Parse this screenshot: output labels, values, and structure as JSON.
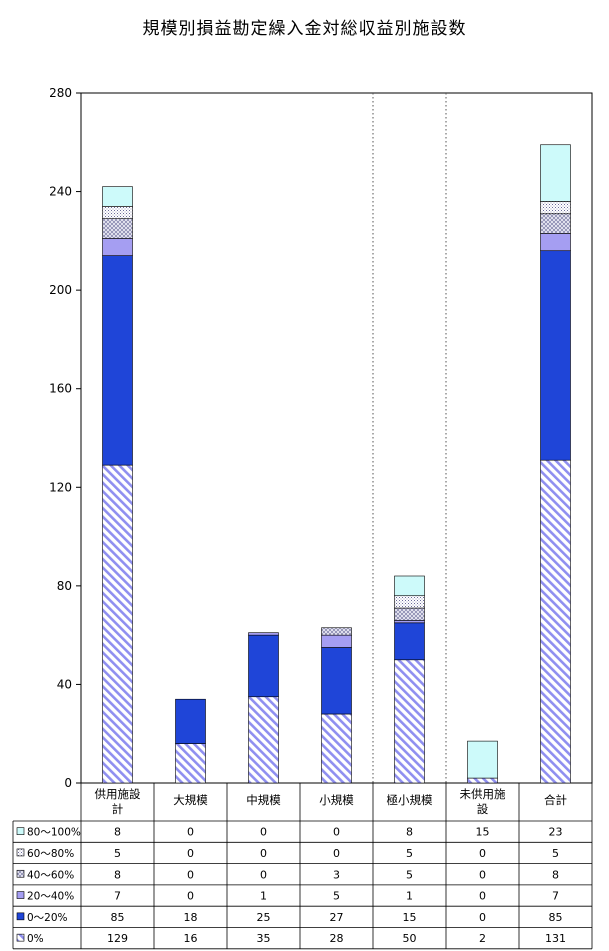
{
  "chart_data": {
    "type": "bar",
    "stacked": true,
    "title": "規模別損益勘定繰入金対総収益別施設数",
    "categories": [
      "供用施設計",
      "大規模",
      "中規模",
      "小規模",
      "極小規模",
      "未供用施設",
      "合計"
    ],
    "category_lines": [
      [
        "供用施設",
        "計"
      ],
      [
        "大規模"
      ],
      [
        "中規模"
      ],
      [
        "小規模"
      ],
      [
        "極小規模"
      ],
      [
        "未供用施",
        "設"
      ],
      [
        "合計"
      ]
    ],
    "series": [
      {
        "name": "0%",
        "values": [
          129,
          16,
          35,
          28,
          50,
          2,
          131
        ],
        "fill": "hatch-diag",
        "color": "#8f8ff0"
      },
      {
        "name": "0～20%",
        "values": [
          85,
          18,
          25,
          27,
          15,
          0,
          85
        ],
        "fill": "solid",
        "color": "#1f45d8"
      },
      {
        "name": "20～40%",
        "values": [
          7,
          0,
          1,
          5,
          1,
          0,
          7
        ],
        "fill": "solid",
        "color": "#a59ef2"
      },
      {
        "name": "40～60%",
        "values": [
          8,
          0,
          0,
          3,
          5,
          0,
          8
        ],
        "fill": "hatch-cross",
        "color": "#8a8ab0"
      },
      {
        "name": "60～80%",
        "values": [
          5,
          0,
          0,
          0,
          5,
          0,
          5
        ],
        "fill": "dots",
        "color": "#6a6a9a"
      },
      {
        "name": "80～100%",
        "values": [
          8,
          0,
          0,
          0,
          8,
          15,
          23
        ],
        "fill": "solid",
        "color": "#cdfafa"
      }
    ],
    "table_row_order": [
      "80～100%",
      "60～80%",
      "40～60%",
      "20～40%",
      "0～20%",
      "0%"
    ],
    "y_ticks": [
      0,
      40,
      80,
      120,
      160,
      200,
      240,
      280
    ],
    "ylim": [
      0,
      280
    ],
    "grid": false,
    "vertical_dotted_separators_after": [
      "小規模",
      "極小規模"
    ],
    "legend": "data-table-left",
    "xlabel": "",
    "ylabel": ""
  }
}
